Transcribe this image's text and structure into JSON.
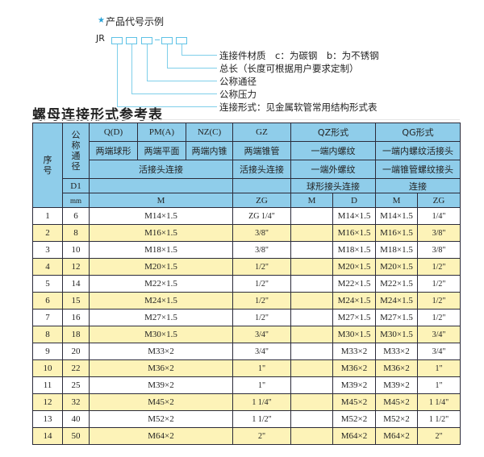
{
  "diagram": {
    "title": "产品代号示例",
    "icon": "star-icon",
    "code_prefix": "JR",
    "accent": "#5fc3e6",
    "labels": [
      "连接件材质　c：为碳钢　b：为不锈钢",
      "总长（长度可根据用户要求定制）",
      "公称通径",
      "公称压力",
      "连接形式：见金属软管常用结构形式表"
    ]
  },
  "section_title": "螺母连接形式参考表",
  "table": {
    "header_color": "#8fcdea",
    "alt_row_color": "#fdf3b8",
    "h": {
      "seq": "序号",
      "nominal": "公称通径",
      "qd": "Q(D)",
      "pma": "PM(A)",
      "nzc": "NZ(C)",
      "gz": "GZ",
      "qz": "QZ形式",
      "qg": "QG形式",
      "qd2": "两端球形",
      "pma2": "两端平面",
      "nzc2": "两端内锥",
      "gz2": "两端锥管",
      "qz2": "一端内螺纹",
      "qg2": "一端内螺纹活接头",
      "conn3": "活接头连接",
      "gz3": "活接头连接",
      "qz3": "一端外螺纹",
      "qg3": "一端锥管螺纹接头",
      "d1": "D1",
      "qz4": "球形接头连接",
      "qg4": "连接",
      "mm": "mm",
      "m": "M",
      "zg": "ZG",
      "qzm": "M",
      "qzd": "D",
      "qgm": "M",
      "qgzg": "ZG"
    },
    "rows": [
      {
        "no": "1",
        "d1": "6",
        "m": "M14×1.5",
        "gz": "ZG 1/4\"",
        "qzd": "M14×1.5",
        "qgm": "M14×1.5",
        "qgzg": "1/4\""
      },
      {
        "no": "2",
        "d1": "8",
        "m": "M16×1.5",
        "gz": "3/8\"",
        "qzd": "M16×1.5",
        "qgm": "M16×1.5",
        "qgzg": "3/8\""
      },
      {
        "no": "3",
        "d1": "10",
        "m": "M18×1.5",
        "gz": "3/8\"",
        "qzd": "M18×1.5",
        "qgm": "M18×1.5",
        "qgzg": "3/8\""
      },
      {
        "no": "4",
        "d1": "12",
        "m": "M20×1.5",
        "gz": "1/2\"",
        "qzd": "M20×1.5",
        "qgm": "M20×1.5",
        "qgzg": "1/2\""
      },
      {
        "no": "5",
        "d1": "14",
        "m": "M22×1.5",
        "gz": "1/2\"",
        "qzd": "M22×1.5",
        "qgm": "M22×1.5",
        "qgzg": "1/2\""
      },
      {
        "no": "6",
        "d1": "15",
        "m": "M24×1.5",
        "gz": "1/2\"",
        "qzd": "M24×1.5",
        "qgm": "M24×1.5",
        "qgzg": "1/2\""
      },
      {
        "no": "7",
        "d1": "16",
        "m": "M27×1.5",
        "gz": "1/2\"",
        "qzd": "M27×1.5",
        "qgm": "M27×1.5",
        "qgzg": "1/2\""
      },
      {
        "no": "8",
        "d1": "18",
        "m": "M30×1.5",
        "gz": "3/4\"",
        "qzd": "M30×1.5",
        "qgm": "M30×1.5",
        "qgzg": "3/4\""
      },
      {
        "no": "9",
        "d1": "20",
        "m": "M33×2",
        "gz": "3/4\"",
        "qzd": "M33×2",
        "qgm": "M33×2",
        "qgzg": "3/4\""
      },
      {
        "no": "10",
        "d1": "22",
        "m": "M36×2",
        "gz": "1\"",
        "qzd": "M36×2",
        "qgm": "M36×2",
        "qgzg": "1\""
      },
      {
        "no": "11",
        "d1": "25",
        "m": "M39×2",
        "gz": "1\"",
        "qzd": "M39×2",
        "qgm": "M39×2",
        "qgzg": "1\""
      },
      {
        "no": "12",
        "d1": "32",
        "m": "M45×2",
        "gz": "1 1/4\"",
        "qzd": "M45×2",
        "qgm": "M45×2",
        "qgzg": "1 1/4\""
      },
      {
        "no": "13",
        "d1": "40",
        "m": "M52×2",
        "gz": "1 1/2\"",
        "qzd": "M52×2",
        "qgm": "M52×2",
        "qgzg": "1 1/2\""
      },
      {
        "no": "14",
        "d1": "50",
        "m": "M64×2",
        "gz": "2\"",
        "qzd": "M64×2",
        "qgm": "M64×2",
        "qgzg": "2\""
      }
    ]
  }
}
